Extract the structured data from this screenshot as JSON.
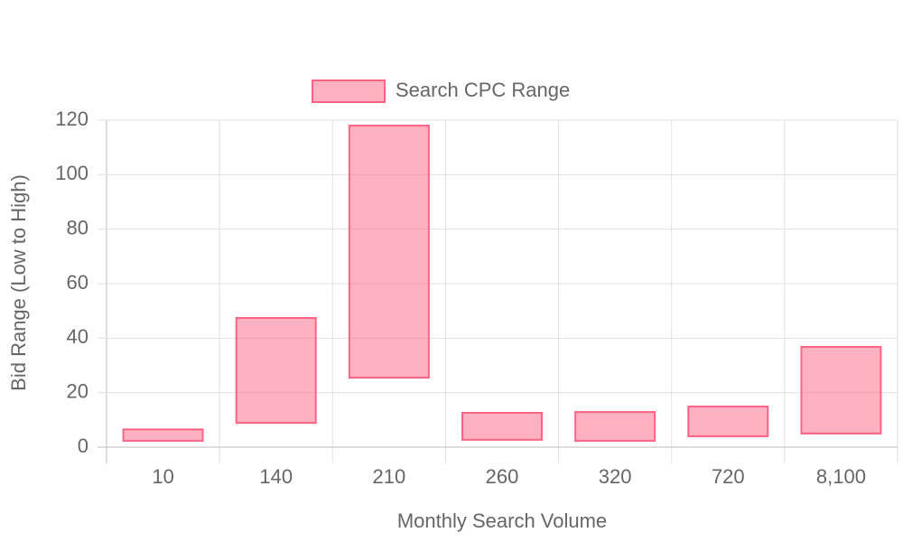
{
  "chart_data": {
    "type": "floating-bar",
    "x_label": "Monthly Search Volume",
    "y_label": "Bid Range (Low to High)",
    "categories": [
      "10",
      "140",
      "210",
      "260",
      "320",
      "720",
      "8,100"
    ],
    "series": [
      {
        "name": "Search CPC Range",
        "color": "#ff6384",
        "values": [
          [
            2.3,
            6.5
          ],
          [
            8.9,
            47.4
          ],
          [
            25.5,
            118
          ],
          [
            2.7,
            12.6
          ],
          [
            2.3,
            12.9
          ],
          [
            4,
            14.9
          ],
          [
            5,
            36.8
          ]
        ]
      }
    ],
    "ylim": [
      0,
      120
    ],
    "yticks": [
      0,
      20,
      40,
      60,
      80,
      100,
      120
    ],
    "grid": true,
    "legend": "top"
  }
}
